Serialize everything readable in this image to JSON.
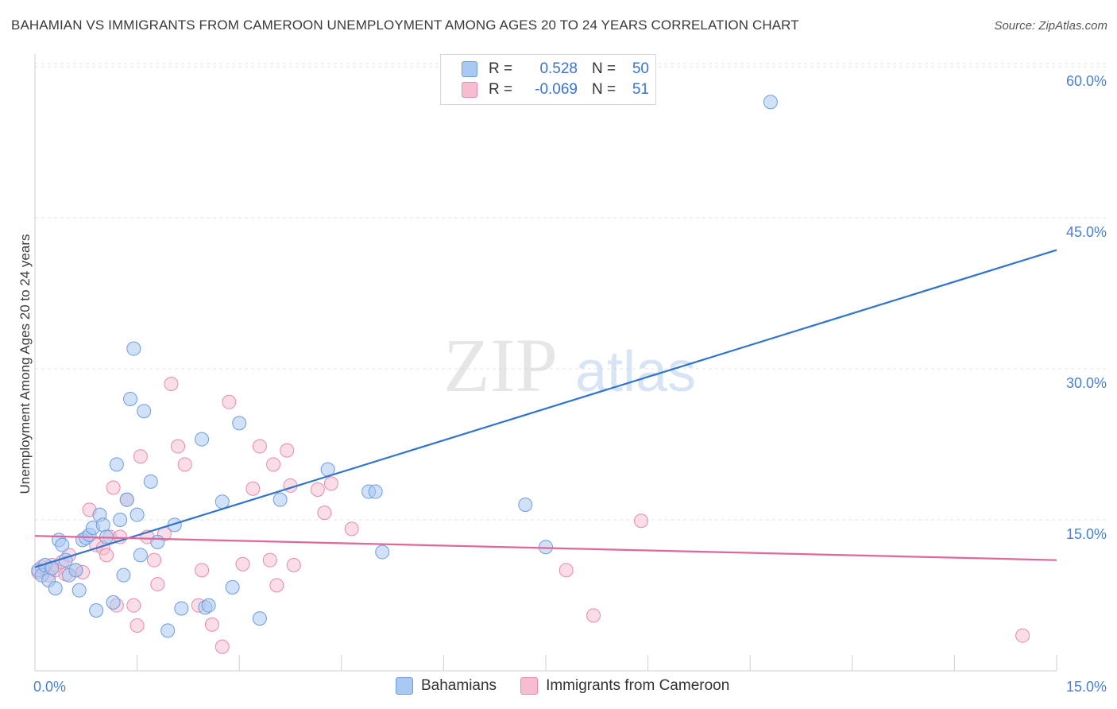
{
  "title": "BAHAMIAN VS IMMIGRANTS FROM CAMEROON UNEMPLOYMENT AMONG AGES 20 TO 24 YEARS CORRELATION CHART",
  "source": "Source: ZipAtlas.com",
  "watermark": {
    "zip": "ZIP",
    "atlas": "atlas"
  },
  "legend": {
    "rows": [
      {
        "r_label": "R =",
        "r_value": "0.528",
        "n_label": "N =",
        "n_value": "50"
      },
      {
        "r_label": "R =",
        "r_value": "-0.069",
        "n_label": "N =",
        "n_value": "51"
      }
    ]
  },
  "bottom_legend": {
    "series1": "Bahamians",
    "series2": "Immigrants from Cameroon"
  },
  "colors": {
    "blue_fill": "#a9c8f2",
    "blue_stroke": "#6d9de0",
    "blue_line": "#2f74d0",
    "pink_fill": "#f6bcd0",
    "pink_stroke": "#e88aaa",
    "pink_line": "#e0679a",
    "grid": "#e3e3e3",
    "axis": "#cfcfcf",
    "tick_text": "#4a7fd0"
  },
  "chart_data": {
    "type": "scatter",
    "title": "BAHAMIAN VS IMMIGRANTS FROM CAMEROON UNEMPLOYMENT AMONG AGES 20 TO 24 YEARS CORRELATION CHART",
    "xlabel": "",
    "ylabel": "Unemployment Among Ages 20 to 24 years",
    "xlim": [
      0,
      15
    ],
    "ylim": [
      0,
      60
    ],
    "x_tick_labels": [
      "0.0%",
      "15.0%"
    ],
    "y_ticks": [
      15,
      30,
      45,
      60
    ],
    "y_tick_labels": [
      "15.0%",
      "30.0%",
      "45.0%",
      "60.0%"
    ],
    "series": [
      {
        "name": "Bahamians",
        "color": "#a9c8f2",
        "points": [
          [
            0.05,
            10.0
          ],
          [
            0.1,
            9.5
          ],
          [
            0.15,
            10.5
          ],
          [
            0.2,
            9.0
          ],
          [
            0.3,
            8.2
          ],
          [
            0.35,
            13.0
          ],
          [
            0.4,
            12.5
          ],
          [
            0.45,
            11.0
          ],
          [
            0.5,
            9.5
          ],
          [
            0.6,
            10.0
          ],
          [
            0.65,
            8.0
          ],
          [
            0.7,
            13.0
          ],
          [
            0.75,
            13.2
          ],
          [
            0.8,
            13.5
          ],
          [
            0.85,
            14.2
          ],
          [
            0.9,
            6.0
          ],
          [
            0.95,
            15.5
          ],
          [
            1.0,
            14.5
          ],
          [
            1.05,
            13.3
          ],
          [
            1.15,
            6.8
          ],
          [
            1.2,
            20.5
          ],
          [
            1.25,
            15.0
          ],
          [
            1.3,
            9.5
          ],
          [
            1.35,
            17.0
          ],
          [
            1.4,
            27.0
          ],
          [
            1.45,
            32.0
          ],
          [
            1.5,
            15.5
          ],
          [
            1.55,
            11.5
          ],
          [
            1.6,
            25.8
          ],
          [
            1.7,
            18.8
          ],
          [
            1.8,
            12.8
          ],
          [
            1.95,
            4.0
          ],
          [
            2.05,
            14.5
          ],
          [
            2.15,
            6.2
          ],
          [
            2.45,
            23.0
          ],
          [
            2.5,
            6.3
          ],
          [
            2.55,
            6.5
          ],
          [
            2.75,
            16.8
          ],
          [
            2.9,
            8.3
          ],
          [
            3.0,
            24.6
          ],
          [
            3.3,
            5.2
          ],
          [
            3.6,
            17.0
          ],
          [
            4.3,
            20.0
          ],
          [
            4.9,
            17.8
          ],
          [
            5.0,
            17.8
          ],
          [
            5.1,
            11.8
          ],
          [
            7.2,
            16.5
          ],
          [
            7.5,
            12.3
          ],
          [
            10.8,
            56.5
          ],
          [
            0.25,
            10.2
          ]
        ]
      },
      {
        "name": "Immigrants from Cameroon",
        "color": "#f6bcd0",
        "points": [
          [
            0.05,
            9.8
          ],
          [
            0.1,
            10.3
          ],
          [
            0.2,
            9.5
          ],
          [
            0.25,
            10.5
          ],
          [
            0.3,
            10.0
          ],
          [
            0.4,
            10.8
          ],
          [
            0.5,
            11.5
          ],
          [
            0.6,
            10.0
          ],
          [
            0.7,
            9.8
          ],
          [
            0.8,
            16.0
          ],
          [
            0.9,
            12.5
          ],
          [
            1.0,
            12.2
          ],
          [
            1.05,
            11.5
          ],
          [
            1.1,
            13.3
          ],
          [
            1.15,
            18.2
          ],
          [
            1.2,
            6.5
          ],
          [
            1.25,
            13.3
          ],
          [
            1.35,
            17.0
          ],
          [
            1.45,
            6.5
          ],
          [
            1.5,
            4.5
          ],
          [
            1.55,
            21.3
          ],
          [
            1.65,
            13.3
          ],
          [
            1.75,
            11.0
          ],
          [
            1.8,
            8.6
          ],
          [
            1.9,
            13.6
          ],
          [
            2.0,
            28.5
          ],
          [
            2.1,
            22.3
          ],
          [
            2.2,
            20.5
          ],
          [
            2.4,
            6.5
          ],
          [
            2.45,
            10.0
          ],
          [
            2.6,
            4.6
          ],
          [
            2.75,
            2.4
          ],
          [
            2.85,
            26.7
          ],
          [
            3.05,
            10.6
          ],
          [
            3.2,
            18.1
          ],
          [
            3.3,
            22.3
          ],
          [
            3.45,
            11.0
          ],
          [
            3.5,
            20.5
          ],
          [
            3.55,
            8.5
          ],
          [
            3.7,
            21.9
          ],
          [
            3.75,
            18.4
          ],
          [
            3.8,
            10.5
          ],
          [
            4.15,
            18.0
          ],
          [
            4.25,
            15.7
          ],
          [
            4.35,
            18.6
          ],
          [
            4.65,
            14.1
          ],
          [
            7.8,
            10.0
          ],
          [
            8.2,
            5.5
          ],
          [
            8.9,
            14.9
          ],
          [
            14.5,
            3.5
          ],
          [
            0.45,
            9.6
          ]
        ]
      }
    ],
    "trendlines": [
      {
        "series": "Bahamians",
        "x": [
          0.0,
          15.0
        ],
        "y": [
          10.3,
          41.8
        ]
      },
      {
        "series": "Immigrants from Cameroon",
        "x": [
          0.0,
          15.0
        ],
        "y": [
          13.4,
          11.0
        ]
      }
    ]
  }
}
